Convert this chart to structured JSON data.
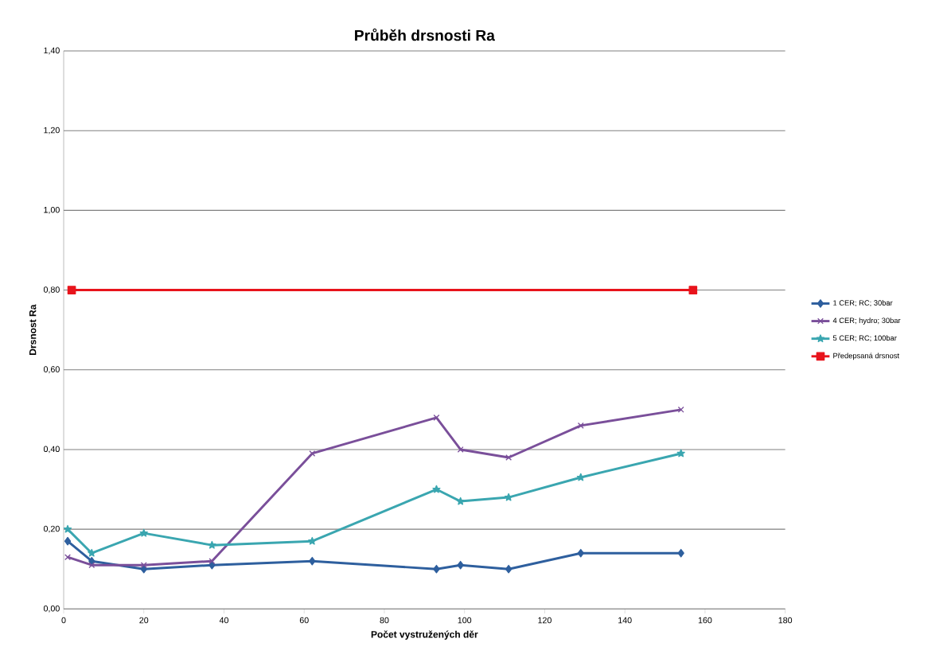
{
  "chart_data": {
    "type": "line",
    "title": "Průběh drsnosti Ra",
    "xlabel": "Počet vystružených děr",
    "ylabel": "Drsnost Ra",
    "x": [
      1,
      7,
      20,
      37,
      62,
      93,
      99,
      111,
      129,
      154
    ],
    "xlim": [
      0,
      180
    ],
    "xticks": [
      0,
      20,
      40,
      60,
      80,
      100,
      120,
      140,
      160,
      180
    ],
    "ylim": [
      0,
      1.4
    ],
    "yticks": [
      {
        "value": 0,
        "label": "0,00"
      },
      {
        "value": 0.2,
        "label": "0,20"
      },
      {
        "value": 0.4,
        "label": "0,40"
      },
      {
        "value": 0.6,
        "label": "0,60"
      },
      {
        "value": 0.8,
        "label": "0,80"
      },
      {
        "value": 1.0,
        "label": "1,00"
      },
      {
        "value": 1.2,
        "label": "1,20"
      },
      {
        "value": 1.4,
        "label": "1,40"
      }
    ],
    "grid": "y",
    "legend": "right",
    "series": [
      {
        "name": "1 CER; RC; 30bar",
        "color": "#2e5f9e",
        "marker": "diamond",
        "values": [
          0.17,
          0.12,
          0.1,
          0.11,
          0.12,
          0.1,
          0.11,
          0.1,
          0.14,
          0.14
        ]
      },
      {
        "name": "4 CER; hydro; 30bar",
        "color": "#7a4f9a",
        "marker": "cross",
        "values": [
          0.13,
          0.11,
          0.11,
          0.12,
          0.39,
          0.48,
          0.4,
          0.38,
          0.46,
          0.5
        ]
      },
      {
        "name": "5 CER; RC; 100bar",
        "color": "#3aa6b0",
        "marker": "star",
        "values": [
          0.2,
          0.14,
          0.19,
          0.16,
          0.17,
          0.3,
          0.27,
          0.28,
          0.33,
          0.39
        ]
      },
      {
        "name": "Předepsaná drsnost",
        "color": "#e8141c",
        "marker": "square",
        "x": [
          2,
          157
        ],
        "values": [
          0.8,
          0.8
        ]
      }
    ]
  }
}
